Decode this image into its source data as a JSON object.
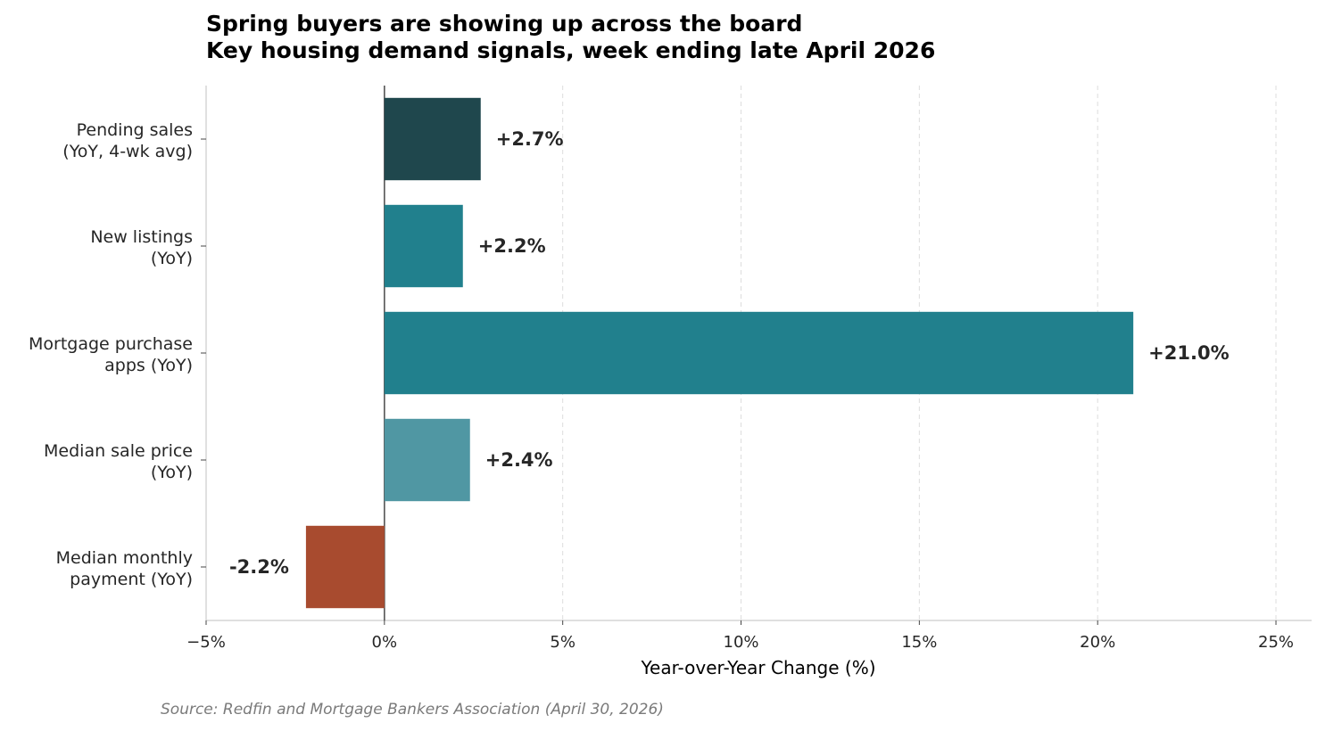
{
  "chart_data": {
    "type": "bar",
    "orientation": "horizontal",
    "title": "Spring buyers are showing up across the board",
    "subtitle": "Key housing demand signals, week ending late April 2026",
    "xlabel": "Year-over-Year Change (%)",
    "xlim": [
      -5,
      26
    ],
    "xticks": [
      -5,
      0,
      5,
      10,
      15,
      20,
      25
    ],
    "xtick_labels": [
      "−5%",
      "0%",
      "5%",
      "10%",
      "15%",
      "20%",
      "25%"
    ],
    "grid": "vertical dashed",
    "categories": [
      {
        "line1": "Pending sales",
        "line2": "(YoY, 4-wk avg)"
      },
      {
        "line1": "New listings",
        "line2": "(YoY)"
      },
      {
        "line1": "Mortgage purchase",
        "line2": "apps (YoY)"
      },
      {
        "line1": "Median sale price",
        "line2": "(YoY)"
      },
      {
        "line1": "Median monthly",
        "line2": "payment (YoY)"
      }
    ],
    "values": [
      2.7,
      2.2,
      21.0,
      2.4,
      -2.2
    ],
    "value_labels": [
      "+2.7%",
      "+2.2%",
      "+21.0%",
      "+2.4%",
      "-2.2%"
    ],
    "colors": [
      "#1f474d",
      "#21808d",
      "#21808d",
      "#5097a3",
      "#a84b2f"
    ]
  },
  "source": "Source: Redfin and Mortgage Bankers Association (April 30, 2026)"
}
